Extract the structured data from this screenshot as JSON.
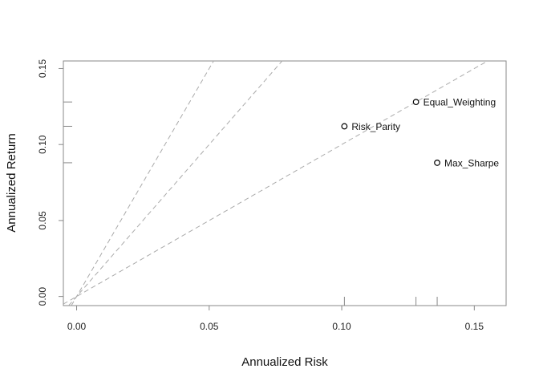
{
  "chart_data": {
    "type": "scatter",
    "title": "",
    "xlabel": "Annualized Risk",
    "ylabel": "Annualized Return",
    "xlim": [
      -0.005,
      0.162
    ],
    "ylim": [
      -0.006,
      0.155
    ],
    "x_ticks": [
      0.0,
      0.05,
      0.1,
      0.15
    ],
    "x_tick_labels": [
      "0.00",
      "0.05",
      "0.10",
      "0.15"
    ],
    "y_ticks": [
      0.0,
      0.05,
      0.1,
      0.15
    ],
    "y_tick_labels": [
      "0.00",
      "0.05",
      "0.10",
      "0.15"
    ],
    "grid": false,
    "points": [
      {
        "label": "Equal_Weighting",
        "x": 0.128,
        "y": 0.128
      },
      {
        "label": "Risk_Parity",
        "x": 0.101,
        "y": 0.112
      },
      {
        "label": "Max_Sharpe",
        "x": 0.136,
        "y": 0.088
      }
    ],
    "reference_lines_slopes": [
      3.0,
      2.0,
      1.0
    ],
    "x_rug": [
      0.101,
      0.128,
      0.136
    ],
    "y_rug": [
      0.088,
      0.112,
      0.128
    ],
    "colors": {
      "axis": "#888888",
      "reference_line": "#aaaaaa",
      "point": "#000000"
    }
  }
}
